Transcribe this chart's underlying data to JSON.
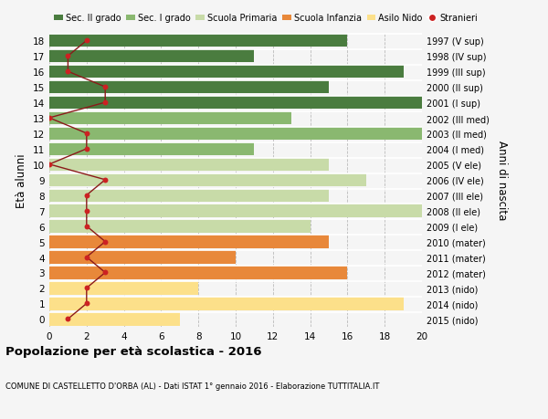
{
  "ages": [
    0,
    1,
    2,
    3,
    4,
    5,
    6,
    7,
    8,
    9,
    10,
    11,
    12,
    13,
    14,
    15,
    16,
    17,
    18
  ],
  "bar_values": [
    7,
    19,
    8,
    16,
    10,
    15,
    14,
    20,
    15,
    17,
    15,
    11,
    20,
    13,
    20,
    15,
    19,
    11,
    16
  ],
  "bar_colors": [
    "#fce08a",
    "#fce08a",
    "#fce08a",
    "#e8883a",
    "#e8883a",
    "#e8883a",
    "#c8dba8",
    "#c8dba8",
    "#c8dba8",
    "#c8dba8",
    "#c8dba8",
    "#8ab870",
    "#8ab870",
    "#8ab870",
    "#4a7c3f",
    "#4a7c3f",
    "#4a7c3f",
    "#4a7c3f",
    "#4a7c3f"
  ],
  "stranieri_values": [
    1,
    2,
    2,
    3,
    2,
    3,
    2,
    2,
    2,
    3,
    0,
    2,
    2,
    0,
    3,
    3,
    1,
    1,
    2
  ],
  "right_labels": [
    "2015 (nido)",
    "2014 (nido)",
    "2013 (nido)",
    "2012 (mater)",
    "2011 (mater)",
    "2010 (mater)",
    "2009 (I ele)",
    "2008 (II ele)",
    "2007 (III ele)",
    "2006 (IV ele)",
    "2005 (V ele)",
    "2004 (I med)",
    "2003 (II med)",
    "2002 (III med)",
    "2001 (I sup)",
    "2000 (II sup)",
    "1999 (III sup)",
    "1998 (IV sup)",
    "1997 (V sup)"
  ],
  "legend_labels": [
    "Sec. II grado",
    "Sec. I grado",
    "Scuola Primaria",
    "Scuola Infanzia",
    "Asilo Nido",
    "Stranieri"
  ],
  "legend_colors": [
    "#4a7c3f",
    "#8ab870",
    "#c8dba8",
    "#e8883a",
    "#fce08a",
    "#cc2222"
  ],
  "ylabel_left": "Età alunni",
  "ylabel_right": "Anni di nascita",
  "title": "Popolazione per età scolastica - 2016",
  "subtitle": "COMUNE DI CASTELLETTO D'ORBA (AL) - Dati ISTAT 1° gennaio 2016 - Elaborazione TUTTITALIA.IT",
  "xlim": [
    0,
    20
  ],
  "xticks": [
    0,
    2,
    4,
    6,
    8,
    10,
    12,
    14,
    16,
    18,
    20
  ],
  "background_color": "#f5f5f5"
}
